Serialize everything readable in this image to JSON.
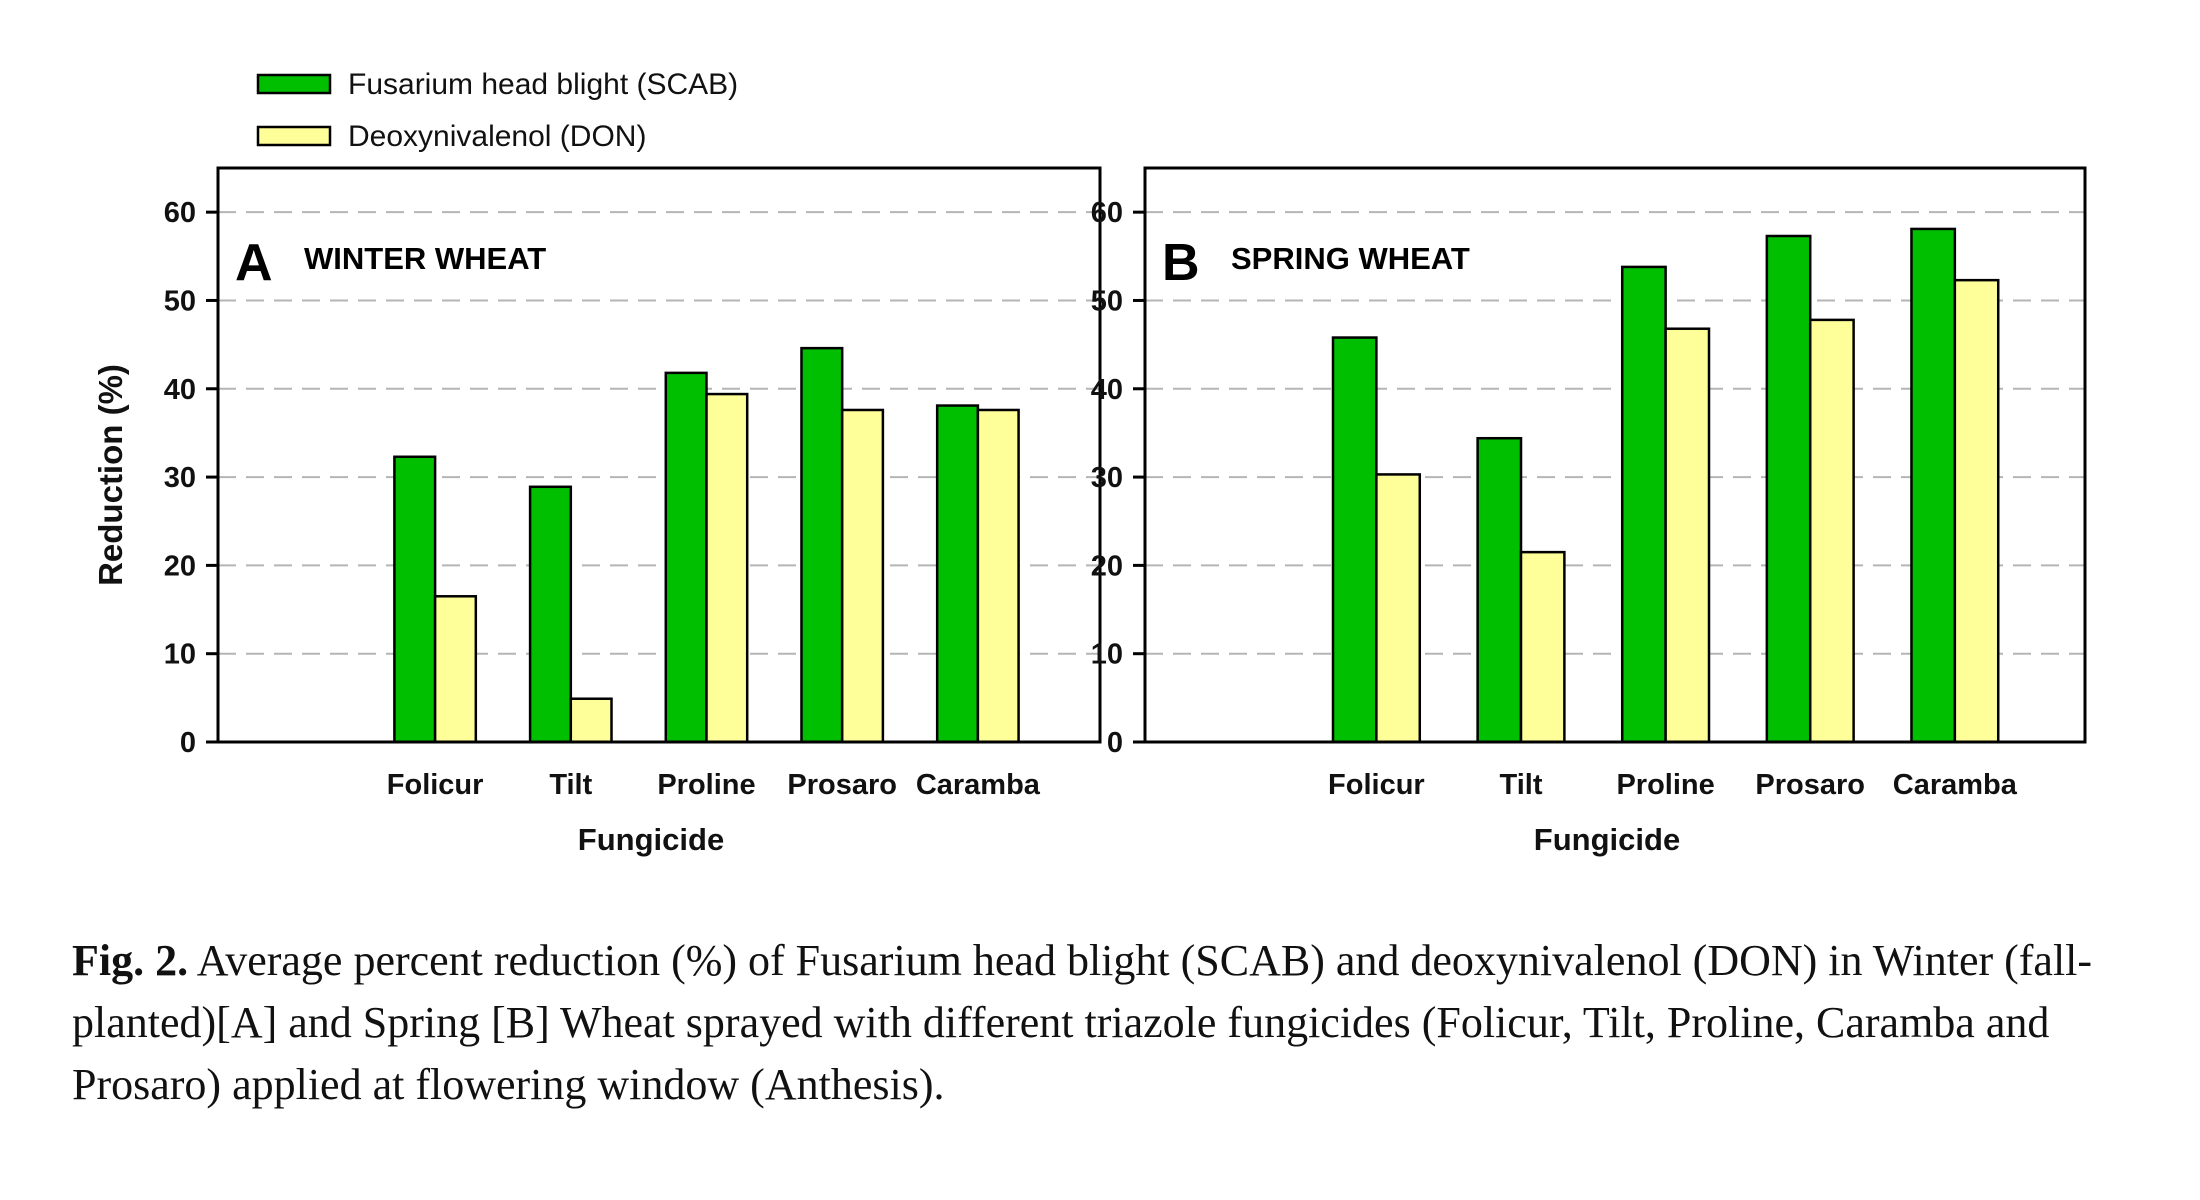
{
  "colors": {
    "scab": "#00bf00",
    "don": "#ffff99",
    "axis": "#000000",
    "grid": "#b5b5b5"
  },
  "legend": [
    {
      "label": "Fusarium head blight (SCAB)",
      "color": "#00bf00"
    },
    {
      "label": "Deoxynivalenol (DON)",
      "color": "#ffff99"
    }
  ],
  "caption": {
    "label": "Fig. 2.",
    "text": "Average percent reduction (%) of Fusarium head blight (SCAB) and deoxynivalenol (DON) in Winter (fall-planted)[A] and Spring [B] Wheat sprayed with different triazole fungicides (Folicur, Tilt, Proline, Caramba and Prosaro) applied at flowering window (Anthesis)."
  },
  "chart_data": [
    {
      "type": "bar",
      "panel_letter": "A",
      "title": "WINTER WHEAT",
      "xlabel": "Fungicide",
      "ylabel": "Reduction (%)",
      "ylim": [
        0,
        65
      ],
      "yticks": [
        0,
        10,
        20,
        30,
        40,
        50,
        60
      ],
      "grid": "dashed horizontal",
      "categories": [
        "Folicur",
        "Tilt",
        "Proline",
        "Prosaro",
        "Caramba"
      ],
      "series": [
        {
          "name": "Fusarium head blight (SCAB)",
          "values": [
            32.3,
            28.9,
            41.8,
            44.6,
            38.1
          ]
        },
        {
          "name": "Deoxynivalenol (DON)",
          "values": [
            16.5,
            4.9,
            39.4,
            37.6,
            37.6
          ]
        }
      ]
    },
    {
      "type": "bar",
      "panel_letter": "B",
      "title": "SPRING WHEAT",
      "xlabel": "Fungicide",
      "ylabel": "",
      "ylim": [
        0,
        65
      ],
      "yticks": [
        0,
        10,
        20,
        30,
        40,
        50,
        60
      ],
      "grid": "dashed horizontal",
      "categories": [
        "Folicur",
        "Tilt",
        "Proline",
        "Prosaro",
        "Caramba"
      ],
      "series": [
        {
          "name": "Fusarium head blight (SCAB)",
          "values": [
            45.8,
            34.4,
            53.8,
            57.3,
            58.1
          ]
        },
        {
          "name": "Deoxynivalenol (DON)",
          "values": [
            30.3,
            21.5,
            46.8,
            47.8,
            52.3
          ]
        }
      ]
    }
  ]
}
